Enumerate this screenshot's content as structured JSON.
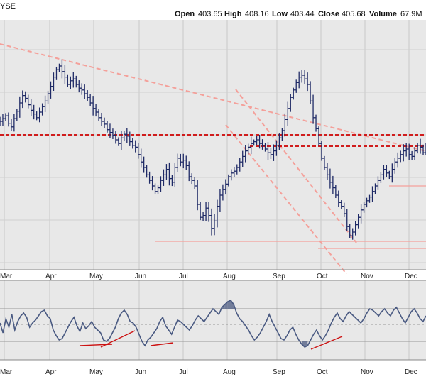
{
  "header": {
    "exchange_fragment": "YSE",
    "open_label": "Open",
    "open_value": "403.65",
    "high_label": "High",
    "high_value": "408.16",
    "low_label": "Low",
    "low_value": "403.44",
    "close_label": "Close",
    "close_value": "405.68",
    "volume_label": "Volume",
    "volume_value": "67.9M"
  },
  "colors": {
    "panel_bg": "#e8e8e8",
    "bars": "#1f2a66",
    "trendline": "#f4a09a",
    "support_line": "#cc0000",
    "oscillator_line": "#4a5a82",
    "oscillator_fill": "#5d6a8c",
    "oscillator_markup": "#cc1111"
  },
  "chart_data": [
    {
      "type": "ohlc",
      "months": [
        "Mar",
        "Apr",
        "May",
        "Jun",
        "Jul",
        "Aug",
        "Sep",
        "Oct",
        "Nov",
        "Dec"
      ],
      "close_series_normalized": [
        0.3,
        0.33,
        0.36,
        0.28,
        0.24,
        0.33,
        0.41,
        0.5,
        0.58,
        0.55,
        0.48,
        0.42,
        0.38,
        0.34,
        0.4,
        0.46,
        0.52,
        0.6,
        0.68,
        0.78,
        0.86,
        0.9,
        0.84,
        0.78,
        0.7,
        0.74,
        0.76,
        0.7,
        0.66,
        0.64,
        0.6,
        0.56,
        0.5,
        0.44,
        0.4,
        0.34,
        0.3,
        0.27,
        0.21,
        0.18,
        0.15,
        0.1,
        0.06,
        0.12,
        0.16,
        0.14,
        0.08,
        0.04,
        0.02,
        -0.06,
        -0.14,
        -0.2,
        -0.28,
        -0.34,
        -0.4,
        -0.46,
        -0.42,
        -0.34,
        -0.28,
        -0.22,
        -0.32,
        -0.36,
        -0.2,
        -0.1,
        -0.14,
        -0.12,
        -0.18,
        -0.3,
        -0.34,
        -0.4,
        -0.6,
        -0.74,
        -0.72,
        -0.64,
        -0.72,
        -0.86,
        -0.78,
        -0.62,
        -0.5,
        -0.44,
        -0.38,
        -0.3,
        -0.26,
        -0.24,
        -0.2,
        -0.14,
        -0.08,
        -0.02,
        0.02,
        0.06,
        0.08,
        0.1,
        0.06,
        0.04,
        0.0,
        -0.04,
        -0.06,
        -0.02,
        0.04,
        0.12,
        0.2,
        0.32,
        0.44,
        0.56,
        0.64,
        0.72,
        0.78,
        0.8,
        0.76,
        0.7,
        0.52,
        0.34,
        0.22,
        0.06,
        -0.1,
        -0.2,
        -0.28,
        -0.36,
        -0.42,
        -0.5,
        -0.58,
        -0.62,
        -0.7,
        -0.84,
        -0.94,
        -0.9,
        -0.82,
        -0.74,
        -0.66,
        -0.6,
        -0.56,
        -0.52,
        -0.46,
        -0.4,
        -0.34,
        -0.28,
        -0.22,
        -0.26,
        -0.3,
        -0.22,
        -0.14,
        -0.1,
        -0.06,
        -0.02,
        0.0,
        -0.06,
        -0.08,
        -0.02,
        0.04,
        0.02,
        -0.04,
        0.04
      ],
      "price_fragments_drawn_only": true
    },
    {
      "type": "line",
      "name": "",
      "description_fragment": "",
      "oscillator_values_normalized": [
        0.05,
        -0.3,
        0.2,
        -0.1,
        0.35,
        -0.2,
        0.1,
        0.3,
        0.4,
        0.25,
        -0.1,
        0.05,
        0.15,
        0.3,
        0.45,
        0.5,
        0.3,
        0.2,
        -0.2,
        -0.4,
        -0.55,
        -0.5,
        -0.3,
        -0.1,
        0.1,
        0.25,
        -0.05,
        -0.25,
        0.05,
        -0.15,
        -0.05,
        0.1,
        -0.1,
        -0.2,
        -0.3,
        -0.55,
        -0.6,
        -0.5,
        -0.3,
        -0.1,
        0.2,
        0.4,
        0.5,
        0.35,
        0.1,
        0.05,
        -0.1,
        -0.35,
        -0.6,
        -0.75,
        -0.55,
        -0.45,
        -0.3,
        -0.15,
        0.1,
        0.25,
        -0.05,
        -0.2,
        -0.35,
        -0.1,
        0.15,
        0.1,
        0.0,
        -0.1,
        -0.2,
        -0.05,
        0.15,
        0.3,
        0.2,
        0.1,
        0.25,
        0.4,
        0.55,
        0.45,
        0.35,
        0.6,
        0.7,
        0.8,
        0.85,
        0.7,
        0.4,
        0.2,
        0.1,
        -0.05,
        -0.2,
        -0.4,
        -0.55,
        -0.45,
        -0.3,
        -0.1,
        0.1,
        0.35,
        0.1,
        -0.1,
        -0.3,
        -0.5,
        -0.55,
        -0.4,
        -0.2,
        -0.1,
        -0.35,
        -0.55,
        -0.7,
        -0.8,
        -0.75,
        -0.55,
        -0.35,
        -0.2,
        -0.4,
        -0.55,
        -0.4,
        -0.2,
        0.05,
        0.25,
        0.4,
        0.2,
        0.1,
        0.3,
        0.45,
        0.35,
        0.25,
        0.15,
        0.05,
        0.2,
        0.4,
        0.55,
        0.5,
        0.4,
        0.3,
        0.45,
        0.55,
        0.4,
        0.3,
        0.5,
        0.6,
        0.4,
        0.2,
        0.05,
        0.25,
        0.45,
        0.55,
        0.4,
        0.2,
        0.1,
        0.3
      ]
    }
  ],
  "x_tick_labels": [
    "Mar",
    "Apr",
    "May",
    "Jun",
    "Jul",
    "Aug",
    "Sep",
    "Oct",
    "Nov",
    "Dec"
  ]
}
